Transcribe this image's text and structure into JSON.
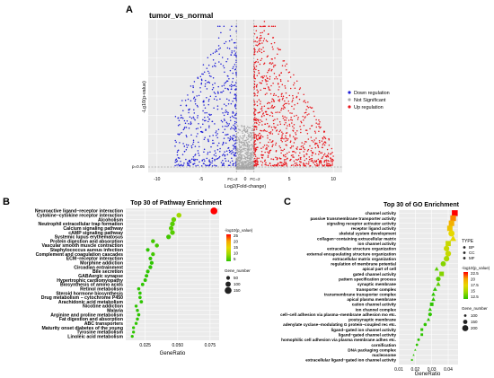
{
  "panels": {
    "a": {
      "letter": "A"
    },
    "b": {
      "letter": "B"
    },
    "c": {
      "letter": "C"
    }
  },
  "chart_data": [
    {
      "panel": "A",
      "type": "scatter",
      "title": "tumor_vs_normal",
      "xlabel": "Log2(Fold-change)",
      "ylabel": "-Lg10(p-value)",
      "xlim": [
        -11,
        11
      ],
      "x_ticks": [
        -10,
        -5,
        0,
        5,
        10
      ],
      "threshold_labels": {
        "p": "p=0.05",
        "fc_left": "FC=2",
        "fc_right": "FC=2"
      },
      "fc_threshold_log2": 1,
      "legend_position": "right",
      "series": [
        {
          "name": "Down regulation",
          "color": "#1f1fd6",
          "x_range": [
            -8,
            -1
          ],
          "approx_points": 1400
        },
        {
          "name": "Not Significant",
          "color": "#a9a9a9",
          "x_range": [
            -1,
            1
          ],
          "approx_points": 1500
        },
        {
          "name": "Up regulation",
          "color": "#e8141a",
          "x_range": [
            1,
            10
          ],
          "approx_points": 2200
        }
      ],
      "grid": true
    },
    {
      "panel": "B",
      "type": "scatter",
      "title": "Top 30 of Pathway Enrichment",
      "xlabel": "GeneRatio",
      "xlim": [
        0.01,
        0.082
      ],
      "x_ticks": [
        0.025,
        0.05,
        0.075
      ],
      "color_legend": {
        "title": "-log10(p_value)",
        "ticks": [
          25,
          20,
          15,
          10,
          5
        ],
        "colors": [
          "#ff0000",
          "#f7a600",
          "#e6d800",
          "#9bd800",
          "#2ec500"
        ]
      },
      "size_legend": {
        "title": "Gene_number",
        "values": [
          50,
          100,
          150
        ]
      },
      "categories": [
        "Neuroactive ligand−receptor interaction",
        "Cytokine−cytokine receptor interaction",
        "Alcoholism",
        "Neutrophil extracellular trap formation",
        "Calcium signaling pathway",
        "cAMP signaling pathway",
        "Systemic lupus erythematosus",
        "Protein digestion and absorption",
        "Vascular smooth muscle contraction",
        "Staphylococcus aureus infection",
        "Complement and coagulation cascades",
        "ECM−receptor interaction",
        "Morphine addiction",
        "Circadian entrainment",
        "Bile secretion",
        "GABAergic synapse",
        "Hypertrophic cardiomyopathy",
        "Biosynthesis of amino acids",
        "Retinol metabolism",
        "Steroid hormone biosynthesis",
        "Drug metabolism − cytochrome P450",
        "Arachidonic acid metabolism",
        "Nicotine addiction",
        "Malaria",
        "Arginine and proline metabolism",
        "Fat digestion and absorption",
        "ABC transporters",
        "Maturity onset diabetes of the young",
        "Tyrosine metabolism",
        "Linoleic acid metabolism"
      ],
      "values": [
        0.078,
        0.051,
        0.047,
        0.046,
        0.045,
        0.046,
        0.043,
        0.031,
        0.034,
        0.027,
        0.031,
        0.029,
        0.03,
        0.029,
        0.027,
        0.026,
        0.025,
        0.023,
        0.02,
        0.021,
        0.021,
        0.022,
        0.018,
        0.019,
        0.02,
        0.019,
        0.018,
        0.016,
        0.016,
        0.015
      ],
      "neg_log10_p": [
        27,
        11,
        8,
        7,
        7,
        7,
        6,
        6,
        6,
        5,
        6,
        5,
        5,
        5,
        5,
        5,
        5,
        5,
        5,
        5,
        5,
        5,
        5,
        5,
        5,
        5,
        5,
        5,
        5,
        5
      ],
      "gene_number": [
        150,
        90,
        85,
        85,
        80,
        85,
        80,
        60,
        60,
        50,
        55,
        50,
        55,
        55,
        50,
        45,
        45,
        40,
        35,
        35,
        35,
        40,
        30,
        30,
        35,
        30,
        30,
        25,
        25,
        25
      ]
    },
    {
      "panel": "C",
      "type": [
        "MF",
        "MF",
        "MF",
        "MF",
        "BP",
        "CC",
        "MF",
        "BP",
        "BP",
        "BP",
        "BP",
        "CC",
        "MF",
        "BP",
        "CC",
        "CC",
        "CC",
        "CC",
        "MF",
        "CC",
        "BP",
        "CC",
        "BP",
        "MF",
        "MF",
        "BP",
        "BP",
        "CC",
        "CC",
        "MF"
      ],
      "title": "Top 30 of GO Enrichment",
      "xlabel": "GeneRatio",
      "xlim": [
        0.01,
        0.046
      ],
      "x_ticks": [
        0.01,
        0.02,
        0.03,
        0.04
      ],
      "shape_legend": {
        "title": "TYPE",
        "entries": [
          "BP",
          "CC",
          "MF"
        ]
      },
      "color_legend": {
        "title": "-log10(p_value)",
        "ticks": [
          22.5,
          20.0,
          17.5,
          15.0,
          12.5
        ],
        "colors": [
          "#ff0000",
          "#f7a600",
          "#e6d800",
          "#9bd800",
          "#2ec500"
        ]
      },
      "size_legend": {
        "title": "Gene_number",
        "values": [
          100,
          150,
          200
        ]
      },
      "categories": [
        "channel activity",
        "passive transmembrane transporter activity",
        "signaling receptor activator activity",
        "receptor ligand activity",
        "skeletal system development",
        "collagen−containing extracellular matrix",
        "ion channel activity",
        "extracellular structure organization",
        "external encapsulating structure organization",
        "extracellular matrix organization",
        "regulation of membrane potential",
        "apical part of cell",
        "gated channel activity",
        "pattern specification process",
        "synaptic membrane",
        "transporter complex",
        "transmembrane transporter complex",
        "apical plasma membrane",
        "cation channel activity",
        "ion channel complex",
        "cell−cell adhesion via plasma−membrane adhesion mo etc.",
        "postsynaptic membrane",
        "adenylate cyclase−modulating G protein−coupled rec etc.",
        "ligand−gated ion channel activity",
        "ligand−gated channel activity",
        "homophilic cell adhesion via plasma membrane adhes etc.",
        "cornification",
        "DNA packaging complex",
        "nucleosome",
        "extracellular ligand−gated ion channel activity"
      ],
      "values": [
        0.044,
        0.043,
        0.042,
        0.041,
        0.042,
        0.043,
        0.04,
        0.039,
        0.04,
        0.039,
        0.037,
        0.033,
        0.036,
        0.034,
        0.034,
        0.032,
        0.031,
        0.031,
        0.03,
        0.029,
        0.029,
        0.028,
        0.026,
        0.024,
        0.024,
        0.022,
        0.021,
        0.02,
        0.019,
        0.018
      ],
      "neg_log10_p": [
        22,
        20,
        19,
        18,
        17,
        17,
        16,
        16,
        16,
        15,
        14,
        13,
        14,
        13,
        13,
        12,
        12,
        12,
        12,
        12,
        12,
        12,
        12,
        12,
        12,
        12,
        12,
        12,
        12,
        12
      ],
      "gene_number": [
        210,
        205,
        200,
        195,
        200,
        205,
        190,
        185,
        190,
        185,
        175,
        150,
        170,
        160,
        160,
        150,
        145,
        145,
        140,
        140,
        135,
        130,
        120,
        115,
        110,
        105,
        100,
        95,
        90,
        85
      ]
    }
  ]
}
